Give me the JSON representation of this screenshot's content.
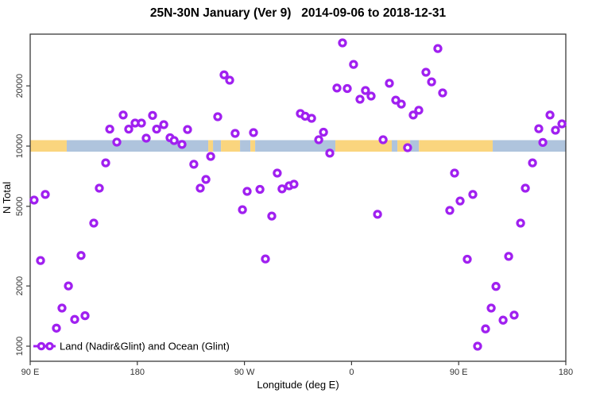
{
  "title": "25N-30N January (Ver 9)   2014-09-06 to 2018-12-31",
  "colors": {
    "marker": "#A020F0",
    "land_band": "#FAD57E",
    "ocean_band": "#AFC4DD",
    "axis": "#3a3a3a",
    "tick_text": "#333333"
  },
  "chart_data": {
    "type": "scatter",
    "title": "25N-30N January (Ver 9)   2014-09-06 to 2018-12-31",
    "xlabel": "Longitude (deg E)",
    "ylabel": "N Total",
    "y_scale": "log",
    "grid": false,
    "x_axis": {
      "range_deg_east": [
        90,
        540
      ],
      "ticks_deg": [
        90,
        180,
        270,
        360,
        450,
        540
      ],
      "tick_labels": [
        "90 E",
        "180",
        "90 W",
        "0",
        "90 E",
        "180"
      ]
    },
    "y_axis": {
      "range": [
        900,
        36500
      ],
      "ticks": [
        1000,
        2000,
        5000,
        10000,
        20000
      ],
      "tick_labels": [
        "1000",
        "2000",
        "5000",
        "10000",
        "20000"
      ]
    },
    "legend": {
      "label": "Land (Nadir&Glint) and Ocean (Glint)",
      "position": "bottom-left",
      "marker": "line-with-open-circles"
    },
    "marker": {
      "shape": "open-circle",
      "color": "#A020F0"
    },
    "surface_band": {
      "description": "horizontal strip at N=10000 showing surface type vs longitude",
      "center_value": 10000,
      "colors": {
        "land": "#FAD57E",
        "ocean": "#AFC4DD"
      },
      "segments": [
        {
          "from": 90,
          "to": 120.7,
          "surface": "land"
        },
        {
          "from": 120.7,
          "to": 239.6,
          "surface": "ocean"
        },
        {
          "from": 239.6,
          "to": 243.6,
          "surface": "land"
        },
        {
          "from": 243.6,
          "to": 250.3,
          "surface": "ocean"
        },
        {
          "from": 250.3,
          "to": 266.3,
          "surface": "land"
        },
        {
          "from": 266.3,
          "to": 275.0,
          "surface": "ocean"
        },
        {
          "from": 275.0,
          "to": 279.0,
          "surface": "land"
        },
        {
          "from": 279.0,
          "to": 346.4,
          "surface": "ocean"
        },
        {
          "from": 346.4,
          "to": 393.8,
          "surface": "land"
        },
        {
          "from": 393.8,
          "to": 398.5,
          "surface": "ocean"
        },
        {
          "from": 398.5,
          "to": 409.2,
          "surface": "land"
        },
        {
          "from": 409.2,
          "to": 416.6,
          "surface": "ocean"
        },
        {
          "from": 416.6,
          "to": 478.6,
          "surface": "land"
        },
        {
          "from": 478.6,
          "to": 540.0,
          "surface": "ocean"
        }
      ]
    },
    "points": [
      [
        352.4,
        32800
      ],
      [
        361.7,
        25600
      ],
      [
        252.9,
        22700
      ],
      [
        257.6,
        21350
      ],
      [
        347.7,
        19500
      ],
      [
        356.4,
        19400
      ],
      [
        371.7,
        18950
      ],
      [
        376.4,
        17780
      ],
      [
        391.8,
        20600
      ],
      [
        367.1,
        17140
      ],
      [
        247.6,
        14020
      ],
      [
        317.0,
        14550
      ],
      [
        321.0,
        14100
      ],
      [
        326.4,
        13770
      ],
      [
        262.2,
        11570
      ],
      [
        277.6,
        11680
      ],
      [
        336.4,
        11730
      ],
      [
        332.4,
        10760
      ],
      [
        386.5,
        10760
      ],
      [
        432.5,
        30750
      ],
      [
        422.5,
        23400
      ],
      [
        427.2,
        20950
      ],
      [
        436.5,
        18450
      ],
      [
        397.1,
        16980
      ],
      [
        401.8,
        16220
      ],
      [
        416.5,
        15100
      ],
      [
        411.8,
        14290
      ],
      [
        526.7,
        14290
      ],
      [
        517.3,
        12220
      ],
      [
        536.7,
        12910
      ],
      [
        531.3,
        12000
      ],
      [
        520.7,
        10430
      ],
      [
        168.1,
        14290
      ],
      [
        192.8,
        14230
      ],
      [
        156.8,
        12160
      ],
      [
        172.8,
        12160
      ],
      [
        178.1,
        13030
      ],
      [
        183.5,
        13030
      ],
      [
        196.2,
        12160
      ],
      [
        202.2,
        12800
      ],
      [
        222.2,
        12100
      ],
      [
        162.8,
        10470
      ],
      [
        187.5,
        10960
      ],
      [
        207.5,
        11010
      ],
      [
        210.9,
        10660
      ],
      [
        217.5,
        10190
      ],
      [
        407.1,
        9820
      ],
      [
        341.7,
        9220
      ],
      [
        241.6,
        8880
      ],
      [
        153.4,
        8250
      ],
      [
        227.5,
        8110
      ],
      [
        148.1,
        6160
      ],
      [
        102.7,
        5730
      ],
      [
        93.3,
        5370
      ],
      [
        237.6,
        6810
      ],
      [
        232.9,
        6160
      ],
      [
        143.4,
        4120
      ],
      [
        297.6,
        7330
      ],
      [
        301.6,
        6110
      ],
      [
        307.6,
        6330
      ],
      [
        311.6,
        6450
      ],
      [
        272.3,
        5940
      ],
      [
        283.0,
        6080
      ],
      [
        268.3,
        4810
      ],
      [
        293.0,
        4470
      ],
      [
        381.8,
        4560
      ],
      [
        512.0,
        8250
      ],
      [
        446.5,
        7330
      ],
      [
        506.0,
        6160
      ],
      [
        461.9,
        5730
      ],
      [
        451.2,
        5320
      ],
      [
        442.5,
        4770
      ],
      [
        502.0,
        4120
      ],
      [
        492.0,
        2810
      ],
      [
        132.7,
        2840
      ],
      [
        98.7,
        2680
      ],
      [
        287.6,
        2730
      ],
      [
        122.1,
        2000
      ],
      [
        116.7,
        1550
      ],
      [
        127.4,
        1360
      ],
      [
        136.1,
        1420
      ],
      [
        112.0,
        1230
      ],
      [
        457.2,
        2720
      ],
      [
        481.3,
        1990
      ],
      [
        477.3,
        1550
      ],
      [
        487.3,
        1350
      ],
      [
        496.6,
        1430
      ],
      [
        472.6,
        1220
      ],
      [
        465.9,
        1000
      ]
    ]
  }
}
